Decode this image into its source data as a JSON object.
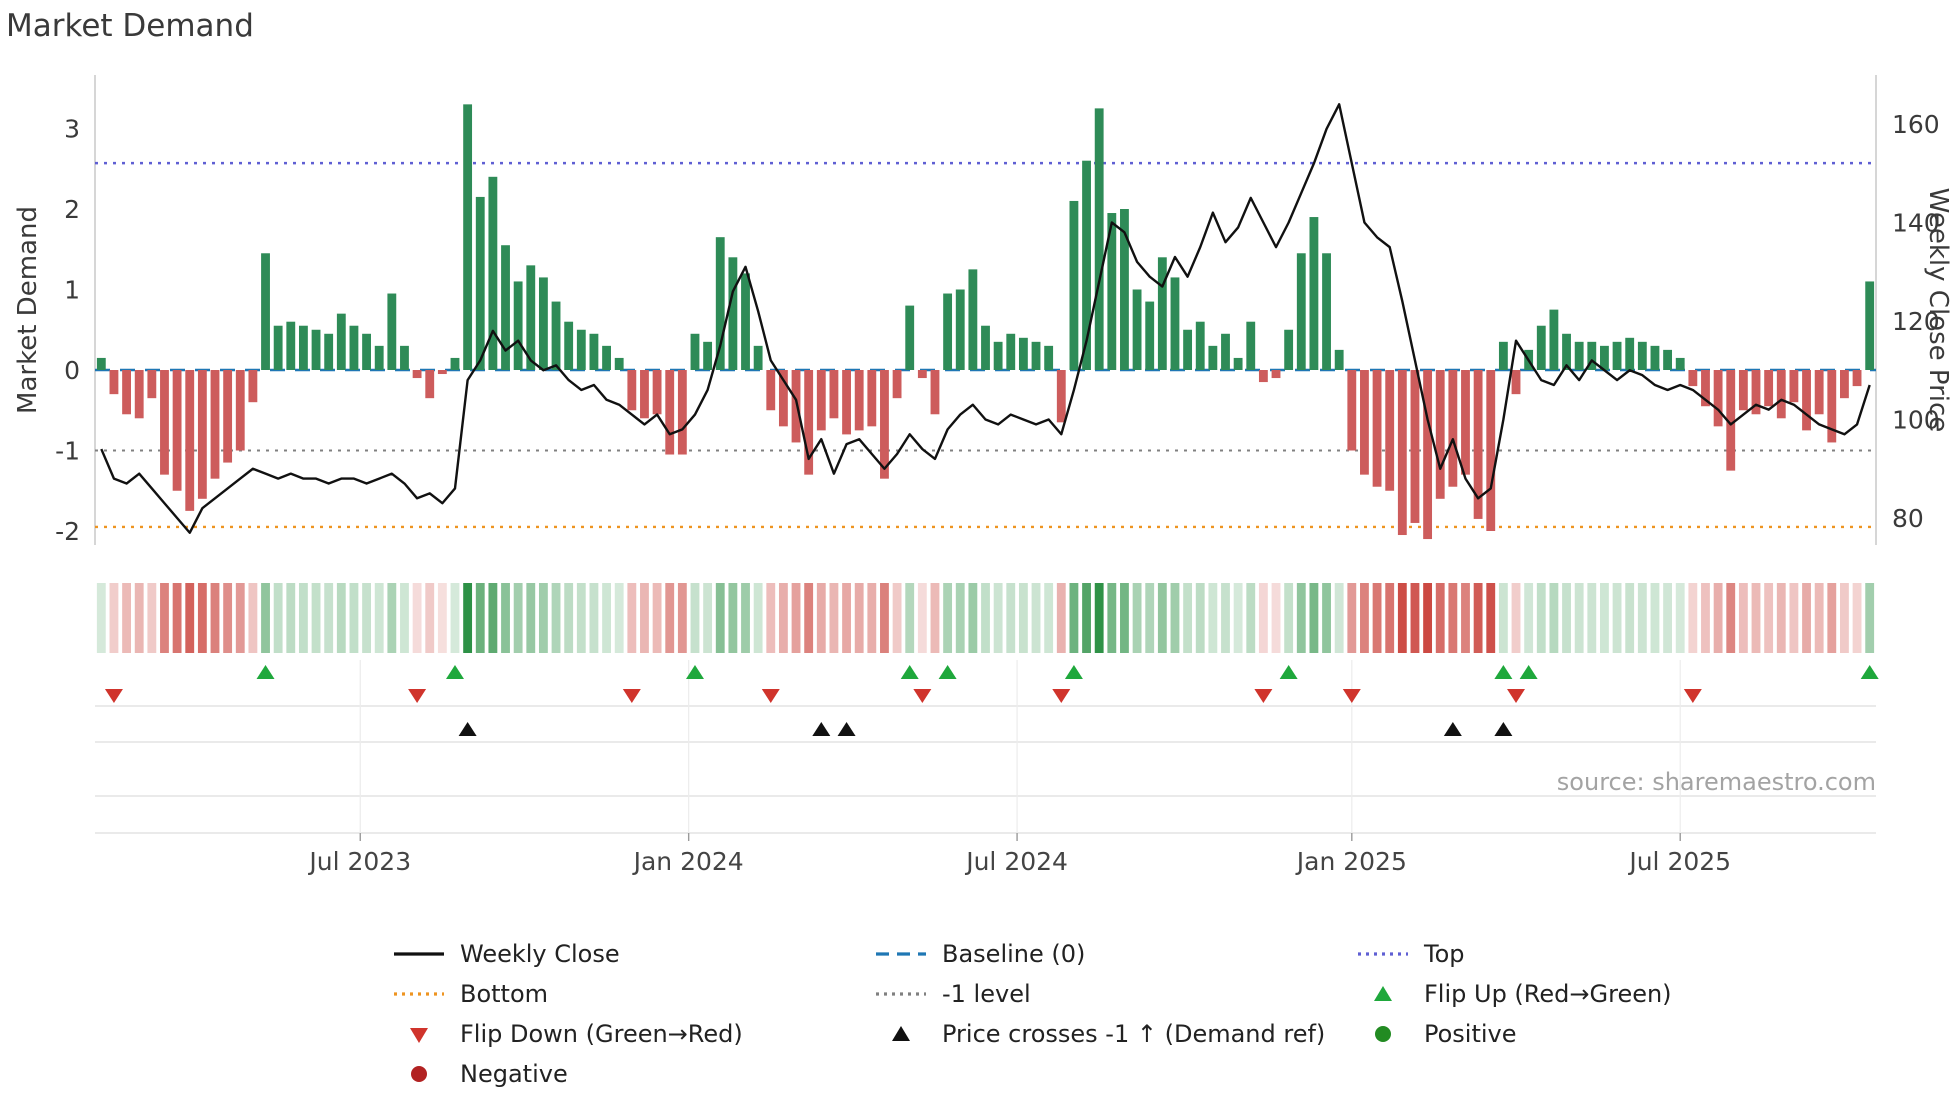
{
  "title": "Market Demand",
  "source": "source: sharemaestro.com",
  "axes": {
    "left_label": "Market Demand",
    "right_label": "Weekly Close Price",
    "left_ticks": [
      3,
      2,
      1,
      0,
      -1,
      -2
    ],
    "right_ticks": [
      160,
      140,
      120,
      100,
      80
    ],
    "x_ticks": [
      {
        "label": "Jul 2023",
        "pos": 20.5
      },
      {
        "label": "Jan 2024",
        "pos": 46.5
      },
      {
        "label": "Jul 2024",
        "pos": 72.5
      },
      {
        "label": "Jan 2025",
        "pos": 99
      },
      {
        "label": "Jul 2025",
        "pos": 125
      }
    ]
  },
  "colors": {
    "bar_positive": "#2E8B57",
    "bar_negative": "#CD5C5C",
    "price_line": "#111111",
    "baseline": "#1f77b4",
    "top_line": "#5f5fd3",
    "bottom_line": "#ee9420",
    "minus_one_line": "#808080",
    "flip_up": "#1fa83c",
    "flip_down": "#d0342c",
    "price_cross": "#111111",
    "positive_dot": "#228B22",
    "negative_dot": "#B22222",
    "heatmap_green_rgb": "34,139,60",
    "heatmap_red_rgb": "201,63,56"
  },
  "chart_data": {
    "type": "bar+line",
    "x_unit": "week",
    "x_range": [
      "Feb 2023",
      "Nov 2025"
    ],
    "ylim_left": [
      -2.6,
      3.65
    ],
    "ylim_right": [
      72,
      168
    ],
    "grid": "lower panels only",
    "legend_position": "bottom",
    "reference_lines": {
      "baseline": 0,
      "top": 2.57,
      "minus_one": -1,
      "bottom": -1.95
    },
    "series": [
      {
        "name": "Market Demand",
        "type": "bar",
        "axis": "left",
        "values": [
          0.15,
          -0.3,
          -0.55,
          -0.6,
          -0.35,
          -1.3,
          -1.5,
          -1.75,
          -1.6,
          -1.35,
          -1.15,
          -1.0,
          -0.4,
          1.45,
          0.55,
          0.6,
          0.55,
          0.5,
          0.45,
          0.7,
          0.55,
          0.45,
          0.3,
          0.95,
          0.3,
          -0.1,
          -0.35,
          -0.05,
          0.15,
          3.3,
          2.15,
          2.4,
          1.55,
          1.1,
          1.3,
          1.15,
          0.85,
          0.6,
          0.5,
          0.45,
          0.3,
          0.15,
          -0.5,
          -0.6,
          -0.55,
          -1.05,
          -1.05,
          0.45,
          0.35,
          1.65,
          1.4,
          1.2,
          0.3,
          -0.5,
          -0.7,
          -0.9,
          -1.3,
          -0.75,
          -0.6,
          -0.8,
          -0.75,
          -0.7,
          -1.35,
          -0.35,
          0.8,
          -0.1,
          -0.55,
          0.95,
          1.0,
          1.25,
          0.55,
          0.35,
          0.45,
          0.4,
          0.35,
          0.3,
          -0.65,
          2.1,
          2.6,
          3.25,
          1.95,
          2.0,
          1.0,
          0.85,
          1.4,
          1.15,
          0.5,
          0.6,
          0.3,
          0.45,
          0.15,
          0.6,
          -0.15,
          -0.1,
          0.5,
          1.45,
          1.9,
          1.45,
          0.25,
          -1.0,
          -1.3,
          -1.45,
          -1.5,
          -2.05,
          -1.9,
          -2.1,
          -1.6,
          -1.45,
          -1.3,
          -1.85,
          -2.0,
          0.35,
          -0.3,
          0.25,
          0.55,
          0.75,
          0.45,
          0.35,
          0.35,
          0.3,
          0.35,
          0.4,
          0.35,
          0.3,
          0.25,
          0.15,
          -0.2,
          -0.45,
          -0.7,
          -1.25,
          -0.5,
          -0.55,
          -0.45,
          -0.6,
          -0.4,
          -0.75,
          -0.55,
          -0.9,
          -0.35,
          -0.2,
          1.1
        ]
      },
      {
        "name": "Weekly Close",
        "type": "line",
        "axis": "right",
        "values": [
          94,
          88,
          87,
          89,
          86,
          83,
          80,
          77,
          82,
          84,
          86,
          88,
          90,
          89,
          88,
          89,
          88,
          88,
          87,
          88,
          88,
          87,
          88,
          89,
          87,
          84,
          85,
          83,
          86,
          108,
          112,
          118,
          114,
          116,
          112,
          110,
          111,
          108,
          106,
          107,
          104,
          103,
          101,
          99,
          101,
          97,
          98,
          101,
          106,
          115,
          126,
          131,
          122,
          112,
          108,
          104,
          92,
          96,
          89,
          95,
          96,
          93,
          90,
          93,
          97,
          94,
          92,
          98,
          101,
          103,
          100,
          99,
          101,
          100,
          99,
          100,
          97,
          106,
          116,
          128,
          140,
          138,
          132,
          129,
          127,
          133,
          129,
          135,
          142,
          136,
          139,
          145,
          140,
          135,
          140,
          146,
          152,
          159,
          164,
          152,
          140,
          137,
          135,
          124,
          112,
          100,
          90,
          96,
          88,
          84,
          86,
          100,
          116,
          112,
          108,
          107,
          111,
          108,
          112,
          110,
          108,
          110,
          109,
          107,
          106,
          107,
          106,
          104,
          102,
          99,
          101,
          103,
          102,
          104,
          103,
          101,
          99,
          98,
          97,
          99,
          107
        ]
      }
    ],
    "markers": {
      "flip_up": [
        13,
        28,
        47,
        64,
        67,
        77,
        94,
        111,
        113,
        140
      ],
      "flip_down": [
        1,
        25,
        42,
        53,
        65,
        76,
        92,
        99,
        112,
        126
      ],
      "price_cross": [
        29,
        57,
        59,
        107,
        111
      ]
    }
  },
  "legend": [
    {
      "label": "Weekly Close",
      "swatch": "line-solid",
      "color": "#111111"
    },
    {
      "label": "Baseline (0)",
      "swatch": "line-dashed",
      "color": "#1f77b4"
    },
    {
      "label": "Top",
      "swatch": "line-dotted",
      "color": "#5f5fd3"
    },
    {
      "label": "Bottom",
      "swatch": "line-dotted",
      "color": "#ee9420"
    },
    {
      "label": "-1 level",
      "swatch": "line-dotted",
      "color": "#808080"
    },
    {
      "label": "Flip Up (Red→Green)",
      "swatch": "tri-up",
      "color": "#1fa83c"
    },
    {
      "label": "Flip Down (Green→Red)",
      "swatch": "tri-down",
      "color": "#d0342c"
    },
    {
      "label": "Price crosses -1 ↑ (Demand ref)",
      "swatch": "tri-up",
      "color": "#111111"
    },
    {
      "label": "Positive",
      "swatch": "dot",
      "color": "#228B22"
    },
    {
      "label": "Negative",
      "swatch": "dot",
      "color": "#B22222"
    }
  ]
}
